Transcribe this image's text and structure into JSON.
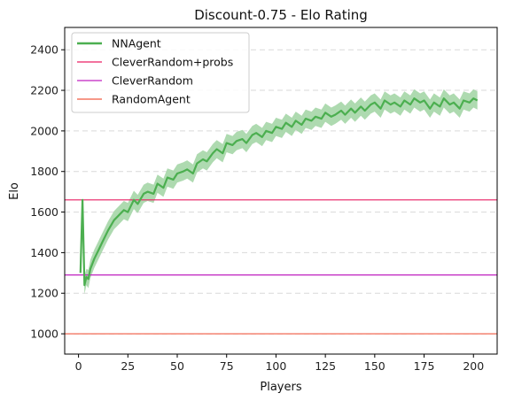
{
  "chart_data": {
    "type": "line",
    "title": "Discount-0.75 - Elo Rating",
    "xlabel": "Players",
    "ylabel": "Elo",
    "xlim": [
      -7,
      212
    ],
    "ylim": [
      900,
      2510
    ],
    "xticks": [
      0,
      25,
      50,
      75,
      100,
      125,
      150,
      175,
      200
    ],
    "yticks": [
      1000,
      1200,
      1400,
      1600,
      1800,
      2000,
      2200,
      2400
    ],
    "grid": "y-dashed",
    "legend_position": "top-left",
    "series": [
      {
        "name": "NNAgent",
        "kind": "line-with-band",
        "color": "#4caf50",
        "band_color": "#a5d6a7",
        "x": [
          1,
          2,
          3,
          4,
          5,
          6,
          8,
          10,
          12,
          15,
          18,
          20,
          23,
          25,
          28,
          30,
          33,
          35,
          38,
          40,
          43,
          45,
          48,
          50,
          53,
          55,
          58,
          60,
          63,
          65,
          68,
          70,
          73,
          75,
          78,
          80,
          83,
          85,
          88,
          90,
          93,
          95,
          98,
          100,
          103,
          105,
          108,
          110,
          113,
          115,
          118,
          120,
          123,
          125,
          128,
          130,
          133,
          135,
          138,
          140,
          143,
          145,
          148,
          150,
          153,
          155,
          158,
          160,
          163,
          165,
          168,
          170,
          173,
          175,
          178,
          180,
          183,
          185,
          188,
          190,
          193,
          195,
          198,
          200,
          202
        ],
        "y": [
          1300,
          1660,
          1240,
          1280,
          1270,
          1320,
          1370,
          1410,
          1450,
          1510,
          1560,
          1580,
          1610,
          1600,
          1660,
          1640,
          1690,
          1700,
          1690,
          1740,
          1720,
          1770,
          1760,
          1790,
          1800,
          1810,
          1790,
          1840,
          1860,
          1850,
          1890,
          1910,
          1890,
          1940,
          1930,
          1950,
          1960,
          1940,
          1980,
          1990,
          1970,
          2000,
          1990,
          2020,
          2010,
          2040,
          2020,
          2050,
          2030,
          2060,
          2050,
          2070,
          2060,
          2090,
          2070,
          2080,
          2100,
          2080,
          2110,
          2090,
          2120,
          2100,
          2130,
          2140,
          2110,
          2150,
          2130,
          2140,
          2120,
          2150,
          2130,
          2160,
          2140,
          2150,
          2110,
          2140,
          2120,
          2160,
          2130,
          2140,
          2110,
          2150,
          2140,
          2160,
          2150
        ],
        "band_half_width": [
          10,
          10,
          45,
          40,
          45,
          45,
          45,
          45,
          45,
          45,
          45,
          45,
          45,
          45,
          45,
          45,
          45,
          45,
          45,
          45,
          45,
          45,
          45,
          45,
          45,
          45,
          45,
          45,
          45,
          45,
          45,
          45,
          45,
          45,
          45,
          45,
          45,
          45,
          45,
          45,
          45,
          45,
          45,
          45,
          45,
          45,
          45,
          45,
          45,
          45,
          45,
          45,
          45,
          45,
          45,
          45,
          45,
          45,
          45,
          45,
          45,
          45,
          45,
          45,
          45,
          45,
          45,
          45,
          45,
          45,
          45,
          45,
          45,
          45,
          45,
          45,
          45,
          45,
          45,
          45,
          45,
          45,
          45,
          45,
          45
        ]
      },
      {
        "name": "CleverRandom+probs",
        "kind": "hline",
        "color": "#e91e63",
        "y": 1660
      },
      {
        "name": "CleverRandom",
        "kind": "hline",
        "color": "#c020c0",
        "y": 1290
      },
      {
        "name": "RandomAgent",
        "kind": "hline",
        "color": "#f05a40",
        "y": 1000
      }
    ]
  }
}
